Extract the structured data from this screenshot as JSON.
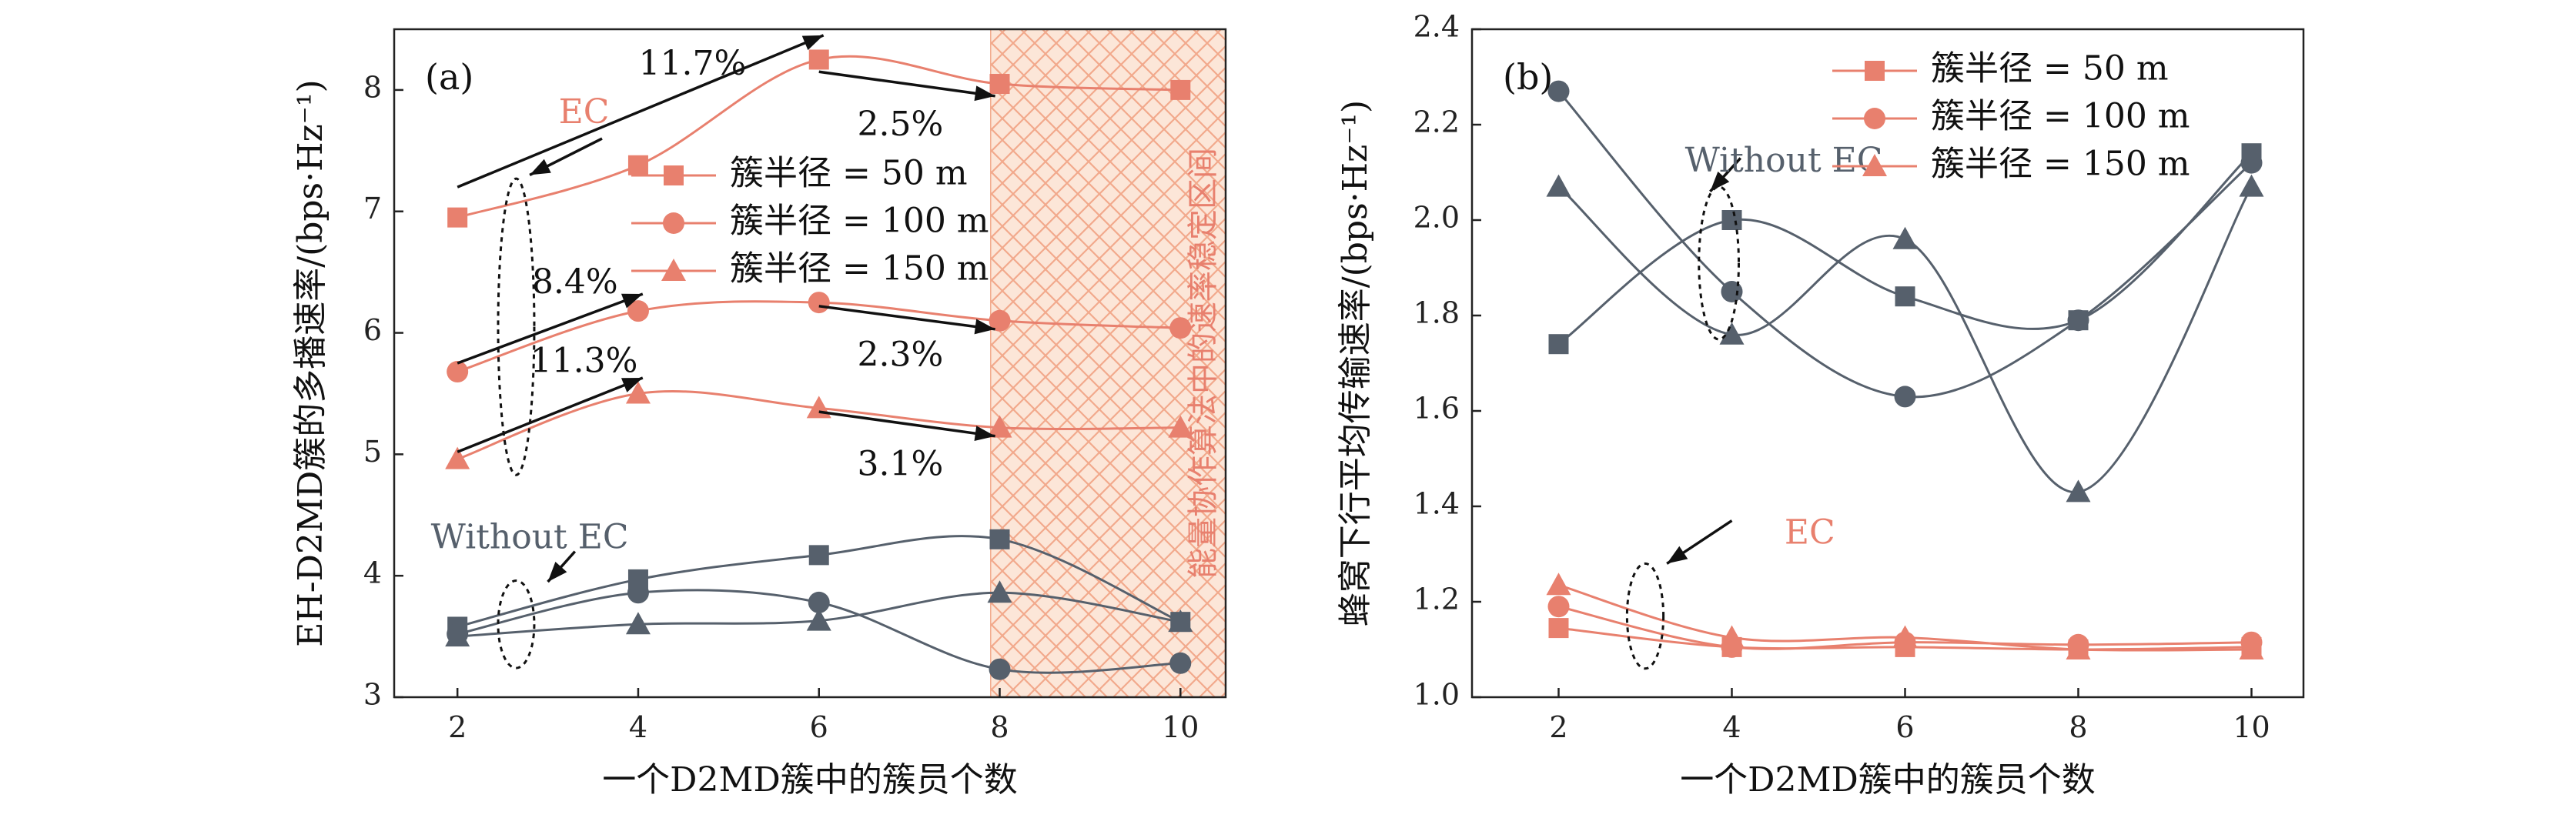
{
  "colors": {
    "ec": "#E8806E",
    "without_ec": "#56606C",
    "region_fill": "#FCE6D8",
    "region_hatch": "#F2A98C"
  },
  "chart_data": [
    {
      "type": "line",
      "panel_label": "(a)",
      "xlabel": "一个D2MD簇中的簇员个数",
      "ylabel": "EH-D2MD簇的多播速率/(bps·Hz⁻¹)",
      "x": [
        2,
        4,
        6,
        8,
        10
      ],
      "xlim": [
        1.3,
        10.5
      ],
      "ylim": [
        3,
        8.5
      ],
      "xticks": [
        2,
        4,
        6,
        8,
        10
      ],
      "yticks": [
        3,
        4,
        5,
        6,
        7,
        8
      ],
      "grid": false,
      "legend": {
        "placement": "middle-right",
        "entries": [
          {
            "label": "簇半径 = 50 m",
            "marker": "square"
          },
          {
            "label": "簇半径 = 100 m",
            "marker": "circle"
          },
          {
            "label": "簇半径 = 150 m",
            "marker": "triangle"
          }
        ]
      },
      "series": [
        {
          "group": "EC",
          "marker": "square",
          "values": [
            6.95,
            7.38,
            8.25,
            8.05,
            8.0
          ]
        },
        {
          "group": "EC",
          "marker": "circle",
          "values": [
            5.68,
            6.18,
            6.25,
            6.1,
            6.04
          ]
        },
        {
          "group": "EC",
          "marker": "triangle",
          "values": [
            4.96,
            5.5,
            5.38,
            5.22,
            5.22
          ]
        },
        {
          "group": "Without EC",
          "marker": "square",
          "values": [
            3.58,
            3.97,
            4.17,
            4.3,
            3.62
          ]
        },
        {
          "group": "Without EC",
          "marker": "circle",
          "values": [
            3.52,
            3.86,
            3.78,
            3.23,
            3.28
          ]
        },
        {
          "group": "Without EC",
          "marker": "triangle",
          "values": [
            3.5,
            3.6,
            3.63,
            3.86,
            3.62
          ]
        }
      ],
      "shaded_region": {
        "x_from": 7.9,
        "x_to": 10.5,
        "label": "能量协作算法中的速率稳定区间"
      },
      "annotations": [
        {
          "text": "EC",
          "group": "EC",
          "x": 3.4,
          "y": 7.8
        },
        {
          "text": "Without EC",
          "group": "Without EC",
          "x": 2.8,
          "y": 4.3
        },
        {
          "text": "11.7%",
          "x": 4.6,
          "y": 8.2
        },
        {
          "text": "2.5%",
          "x": 6.9,
          "y": 7.7
        },
        {
          "text": "8.4%",
          "x": 3.3,
          "y": 6.4
        },
        {
          "text": "2.3%",
          "x": 6.9,
          "y": 5.8
        },
        {
          "text": "11.3%",
          "x": 3.4,
          "y": 5.75
        },
        {
          "text": "3.1%",
          "x": 6.9,
          "y": 4.9
        }
      ],
      "arrows": [
        {
          "from": [
            2.0,
            7.2
          ],
          "to": [
            6.05,
            8.45
          ]
        },
        {
          "from": [
            6.0,
            8.15
          ],
          "to": [
            7.95,
            7.95
          ]
        },
        {
          "from": [
            2.0,
            5.75
          ],
          "to": [
            4.05,
            6.32
          ]
        },
        {
          "from": [
            6.0,
            6.22
          ],
          "to": [
            7.95,
            6.03
          ]
        },
        {
          "from": [
            2.0,
            5.02
          ],
          "to": [
            4.05,
            5.63
          ]
        },
        {
          "from": [
            6.0,
            5.35
          ],
          "to": [
            7.95,
            5.15
          ]
        },
        {
          "from": [
            3.6,
            7.6
          ],
          "to": [
            2.8,
            7.3
          ]
        },
        {
          "from": [
            3.3,
            4.2
          ],
          "to": [
            3.0,
            3.95
          ]
        }
      ],
      "ellipses": [
        {
          "cx": 2.65,
          "cy": 6.05,
          "rx": 0.2,
          "ry": 1.22
        },
        {
          "cx": 2.65,
          "cy": 3.6,
          "rx": 0.2,
          "ry": 0.36
        }
      ]
    },
    {
      "type": "line",
      "panel_label": "(b)",
      "xlabel": "一个D2MD簇中的簇员个数",
      "ylabel": "蜂窝下行平均传输速率/(bps·Hz⁻¹)",
      "x": [
        2,
        4,
        6,
        8,
        10
      ],
      "xlim": [
        1.0,
        10.6
      ],
      "ylim": [
        1.0,
        2.4
      ],
      "xticks": [
        2,
        4,
        6,
        8,
        10
      ],
      "yticks": [
        1.0,
        1.2,
        1.4,
        1.6,
        1.8,
        2.0,
        2.2,
        2.4
      ],
      "grid": false,
      "legend": {
        "placement": "top-right",
        "entries": [
          {
            "label": "簇半径 = 50 m",
            "marker": "square"
          },
          {
            "label": "簇半径 = 100 m",
            "marker": "circle"
          },
          {
            "label": "簇半径 = 150 m",
            "marker": "triangle"
          }
        ]
      },
      "series": [
        {
          "group": "Without EC",
          "marker": "square",
          "values": [
            1.74,
            2.0,
            1.84,
            1.79,
            2.14
          ]
        },
        {
          "group": "Without EC",
          "marker": "circle",
          "values": [
            2.27,
            1.85,
            1.63,
            1.79,
            2.12
          ]
        },
        {
          "group": "Without EC",
          "marker": "triangle",
          "values": [
            2.07,
            1.76,
            1.96,
            1.43,
            2.07
          ]
        },
        {
          "group": "EC",
          "marker": "square",
          "values": [
            1.145,
            1.105,
            1.105,
            1.1,
            1.105
          ]
        },
        {
          "group": "EC",
          "marker": "circle",
          "values": [
            1.19,
            1.105,
            1.115,
            1.11,
            1.115
          ]
        },
        {
          "group": "EC",
          "marker": "triangle",
          "values": [
            1.235,
            1.125,
            1.125,
            1.1,
            1.1
          ]
        }
      ],
      "annotations": [
        {
          "text": "Without EC",
          "group": "Without EC",
          "x": 4.6,
          "y": 2.12
        },
        {
          "text": "EC",
          "group": "EC",
          "x": 4.9,
          "y": 1.34
        }
      ],
      "arrows": [
        {
          "from": [
            4.1,
            2.13
          ],
          "to": [
            3.75,
            2.06
          ]
        },
        {
          "from": [
            4.0,
            1.37
          ],
          "to": [
            3.25,
            1.28
          ]
        }
      ],
      "ellipses": [
        {
          "cx": 3.85,
          "cy": 1.91,
          "rx": 0.23,
          "ry": 0.16
        },
        {
          "cx": 3.0,
          "cy": 1.17,
          "rx": 0.21,
          "ry": 0.11
        }
      ]
    }
  ]
}
